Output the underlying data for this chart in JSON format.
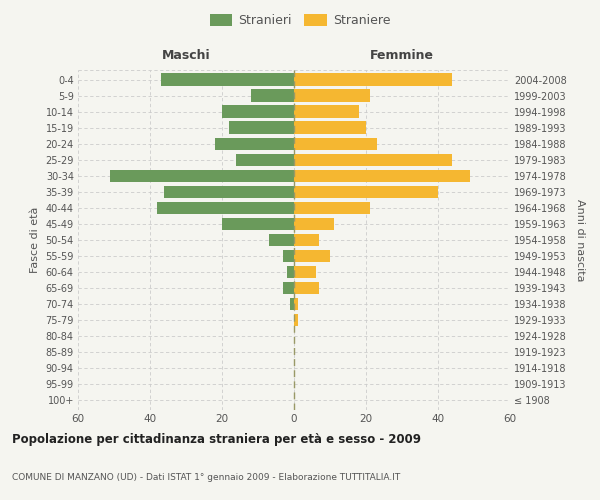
{
  "age_groups": [
    "100+",
    "95-99",
    "90-94",
    "85-89",
    "80-84",
    "75-79",
    "70-74",
    "65-69",
    "60-64",
    "55-59",
    "50-54",
    "45-49",
    "40-44",
    "35-39",
    "30-34",
    "25-29",
    "20-24",
    "15-19",
    "10-14",
    "5-9",
    "0-4"
  ],
  "birth_years": [
    "≤ 1908",
    "1909-1913",
    "1914-1918",
    "1919-1923",
    "1924-1928",
    "1929-1933",
    "1934-1938",
    "1939-1943",
    "1944-1948",
    "1949-1953",
    "1954-1958",
    "1959-1963",
    "1964-1968",
    "1969-1973",
    "1974-1978",
    "1979-1983",
    "1984-1988",
    "1989-1993",
    "1994-1998",
    "1999-2003",
    "2004-2008"
  ],
  "maschi": [
    0,
    0,
    0,
    0,
    0,
    0,
    1,
    3,
    2,
    3,
    7,
    20,
    38,
    36,
    51,
    16,
    22,
    18,
    20,
    12,
    37
  ],
  "femmine": [
    0,
    0,
    0,
    0,
    0,
    1,
    1,
    7,
    6,
    10,
    7,
    11,
    21,
    40,
    49,
    44,
    23,
    20,
    18,
    21,
    44
  ],
  "maschi_color": "#6a9a5b",
  "femmine_color": "#f5b731",
  "background_color": "#f5f5f0",
  "grid_color": "#cccccc",
  "title": "Popolazione per cittadinanza straniera per età e sesso - 2009",
  "subtitle": "COMUNE DI MANZANO (UD) - Dati ISTAT 1° gennaio 2009 - Elaborazione TUTTITALIA.IT",
  "ylabel_left": "Fasce di età",
  "ylabel_right": "Anni di nascita",
  "xlabel_maschi": "Maschi",
  "xlabel_femmine": "Femmine",
  "legend_maschi": "Stranieri",
  "legend_femmine": "Straniere",
  "xlim": 60
}
